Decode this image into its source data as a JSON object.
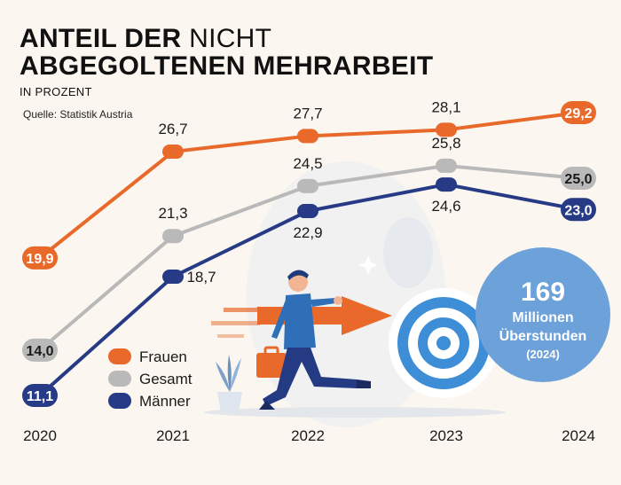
{
  "header": {
    "title_bold_1": "ANTEIL DER",
    "title_light": "NICHT",
    "title_bold_2": "ABGEGOLTENEN MEHRARBEIT",
    "subtitle": "IN PROZENT",
    "source": "Quelle: Statistik Austria"
  },
  "colors": {
    "frauen": "#e8692a",
    "gesamt": "#b9b9b9",
    "maenner": "#263a85",
    "bubble": "#6ca2d9",
    "background": "#fbf6ef"
  },
  "chart_data": {
    "type": "line",
    "categories": [
      "2020",
      "2021",
      "2022",
      "2023",
      "2024"
    ],
    "ylim": [
      10,
      30
    ],
    "grid": false,
    "legend_position": "bottom-left",
    "series": [
      {
        "key": "frauen",
        "name": "Frauen",
        "values": [
          19.9,
          26.7,
          27.7,
          28.1,
          29.2
        ],
        "labels": [
          "19,9",
          "26,7",
          "27,7",
          "28,1",
          "29,2"
        ]
      },
      {
        "key": "gesamt",
        "name": "Gesamt",
        "values": [
          14.0,
          21.3,
          24.5,
          25.8,
          25.0
        ],
        "labels": [
          "14,0",
          "21,3",
          "24,5",
          "25,8",
          "25,0"
        ]
      },
      {
        "key": "maenner",
        "name": "Männer",
        "values": [
          11.1,
          18.7,
          22.9,
          24.6,
          23.0
        ],
        "labels": [
          "11,1",
          "18,7",
          "22,9",
          "24,6",
          "23,0"
        ]
      }
    ]
  },
  "callout": {
    "number": "169",
    "line1": "Millionen",
    "line2": "Überstunden",
    "line3": "(2024)"
  }
}
